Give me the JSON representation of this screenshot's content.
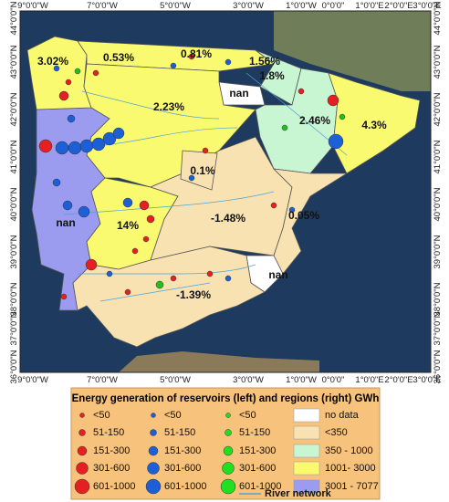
{
  "axes": {
    "top": [
      "9°0'0\"W",
      "7°0'0\"W",
      "5°0'0\"W",
      "3°0'0\"W",
      "1°0'0\"W",
      "0°0'0\"",
      "1°0'0\"E",
      "2°0'0\"E",
      "3°0'0\"E"
    ],
    "bottom": [
      "9°0'0\"W",
      "7°0'0\"W",
      "5°0'0\"W",
      "3°0'0\"W",
      "1°0'0\"W",
      "0°0'0\"",
      "1°0'0\"E",
      "2°0'0\"E",
      "3°0'0\"E"
    ],
    "left": [
      "44°0'0\"N",
      "43°0'0\"N",
      "42°0'0\"N",
      "41°0'0\"N",
      "40°0'0\"N",
      "39°0'0\"N",
      "38°0'0\"N",
      "37°0'0\"N",
      "36°0'0\"N"
    ],
    "right": [
      "44°0'0\"N",
      "43°0'0\"N",
      "42°0'0\"N",
      "41°0'0\"N",
      "40°0'0\"N",
      "39°0'0\"N",
      "38°0'0\"N",
      "37°0'0\"N",
      "36°0'0\"N"
    ]
  },
  "regions": [
    {
      "label": "3.02%"
    },
    {
      "label": "0.53%"
    },
    {
      "label": "0.81%"
    },
    {
      "label": "1.56%"
    },
    {
      "label": "1.8%"
    },
    {
      "label": "nan"
    },
    {
      "label": "2.23%"
    },
    {
      "label": "2.46%"
    },
    {
      "label": "4.3%"
    },
    {
      "label": "0.1%"
    },
    {
      "label": "nan"
    },
    {
      "label": "14%"
    },
    {
      "label": "-1.48%"
    },
    {
      "label": "0.05%"
    },
    {
      "label": "nan"
    },
    {
      "label": "-1.39%"
    }
  ],
  "legend": {
    "title": "Energy generation of reservoirs (left) and regions (right) GWh",
    "reservoir_classes": [
      "<50",
      "51-150",
      "151-300",
      "301-600",
      "601-1000"
    ],
    "region_classes": [
      "no data",
      "<350",
      "350 - 1000",
      "1001- 3000",
      "3001 - 7077"
    ],
    "river": "River network"
  }
}
